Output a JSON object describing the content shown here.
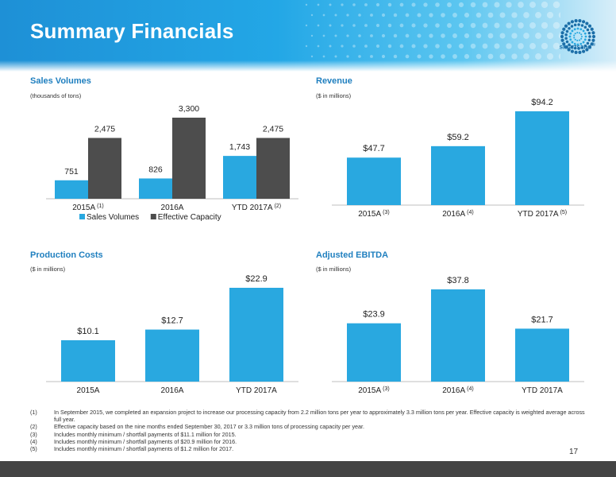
{
  "header": {
    "title": "Summary Financials",
    "logo_text": "smartsand",
    "logo_mark": "®"
  },
  "colors": {
    "accent": "#1f7fbf",
    "bar_blue": "#29a8e0",
    "bar_dark": "#4d4d4d"
  },
  "chart_data": [
    {
      "type": "bar",
      "title": "Sales Volumes",
      "subtitle": "(thousands of tons)",
      "categories": [
        "2015A",
        "2016A",
        "YTD 2017A"
      ],
      "category_notes": [
        "(1)",
        "",
        "(2)"
      ],
      "series": [
        {
          "name": "Sales Volumes",
          "values": [
            751,
            826,
            1743
          ],
          "labels": [
            "751",
            "826",
            "1,743"
          ],
          "color": "#29a8e0"
        },
        {
          "name": "Effective Capacity",
          "values": [
            2475,
            3300,
            2475
          ],
          "labels": [
            "2,475",
            "3,300",
            "2,475"
          ],
          "color": "#4d4d4d"
        }
      ],
      "ylim": [
        0,
        3300
      ],
      "legend": "bottom"
    },
    {
      "type": "bar",
      "title": "Revenue",
      "subtitle": "($ in millions)",
      "categories": [
        "2015A",
        "2016A",
        "YTD 2017A"
      ],
      "category_notes": [
        "(3)",
        "(4)",
        "(5)"
      ],
      "values": [
        47.7,
        59.2,
        94.2
      ],
      "labels": [
        "$47.7",
        "$59.2",
        "$94.2"
      ],
      "ylim": [
        0,
        94.2
      ]
    },
    {
      "type": "bar",
      "title": "Production Costs",
      "subtitle": "($ in millions)",
      "categories": [
        "2015A",
        "2016A",
        "YTD 2017A"
      ],
      "category_notes": [
        "",
        "",
        ""
      ],
      "values": [
        10.1,
        12.7,
        22.9
      ],
      "labels": [
        "$10.1",
        "$12.7",
        "$22.9"
      ],
      "ylim": [
        0,
        22.9
      ]
    },
    {
      "type": "bar",
      "title": "Adjusted EBITDA",
      "subtitle": "($ in millions)",
      "categories": [
        "2015A",
        "2016A",
        "YTD 2017A"
      ],
      "category_notes": [
        "(3)",
        "(4)",
        ""
      ],
      "values": [
        23.9,
        37.8,
        21.7
      ],
      "labels": [
        "$23.9",
        "$37.8",
        "$21.7"
      ],
      "ylim": [
        0,
        37.8
      ]
    }
  ],
  "footnotes": [
    {
      "num": "(1)",
      "text": "In September 2015, we completed an expansion project to increase our processing capacity from 2.2 million tons per year to approximately 3.3 million tons per year. Effective capacity is weighted average across full year."
    },
    {
      "num": "(2)",
      "text": "Effective capacity based on the nine months ended September 30, 2017 or 3.3 million tons of processing capacity per year."
    },
    {
      "num": "(3)",
      "text": "Includes monthly minimum / shortfall payments of $11.1 million for 2015."
    },
    {
      "num": "(4)",
      "text": "Includes monthly minimum / shortfall payments of $20.9 million for 2016."
    },
    {
      "num": "(5)",
      "text": "Includes monthly minimum / shortfall payments of $1.2 million for 2017."
    }
  ],
  "page_number": "17"
}
